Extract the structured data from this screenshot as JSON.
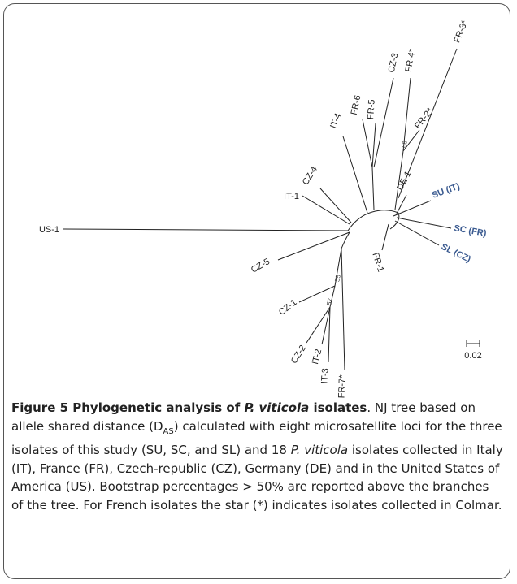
{
  "tree": {
    "leaves": [
      "US-1",
      "IT-1",
      "CZ-4",
      "IT-4",
      "FR-6",
      "FR-5",
      "CZ-3",
      "FR-4*",
      "FR-3*",
      "FR-2*",
      "DE-1",
      "SU (IT)",
      "SC (FR)",
      "SL (CZ)",
      "FR-1",
      "CZ-5",
      "CZ-1",
      "CZ-2",
      "IT-2",
      "IT-3",
      "FR-7*"
    ],
    "bootstrap": [
      "68",
      "55",
      "57"
    ],
    "scale": "0.02"
  },
  "caption": [
    {
      "text": "Figure 5 Phylogenetic analysis of ",
      "style": "bold"
    },
    {
      "text": "P. viticola",
      "style": "bold-italic"
    },
    {
      "text": " isolates",
      "style": "bold"
    },
    {
      "text": ". NJ tree based on allele shared distance (D",
      "style": "normal"
    },
    {
      "text": "AS",
      "style": "sub"
    },
    {
      "text": ") calculated with eight microsatellite loci for the three isolates of this study (SU, SC, and SL) and 18 ",
      "style": "normal"
    },
    {
      "text": "P. viticola",
      "style": "italic"
    },
    {
      "text": " isolates collected in Italy (IT), France (FR), Czech-republic (CZ), Germany (DE) and in the United States of America (US). Bootstrap percentages > 50% are reported above the branches of the tree. For French isolates the star (*) indicates isolates collected in Colmar.",
      "style": "normal"
    }
  ]
}
